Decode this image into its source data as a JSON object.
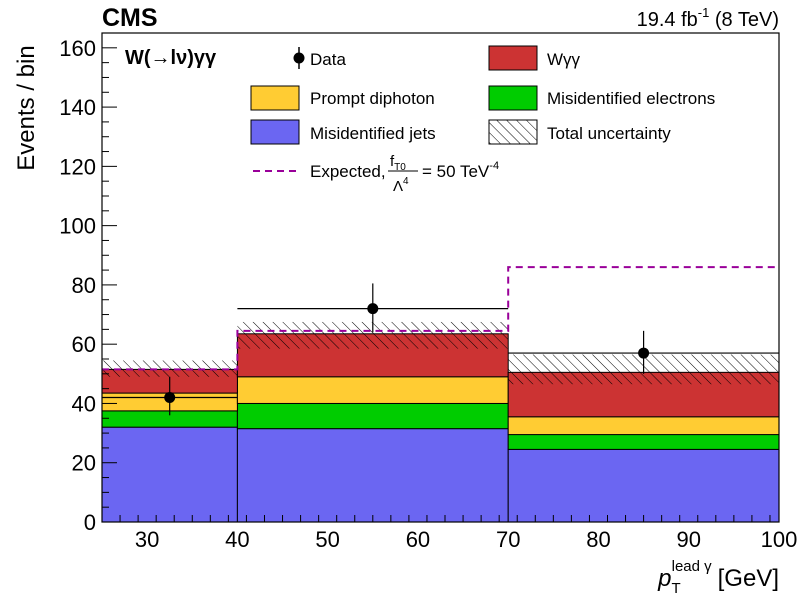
{
  "header": {
    "experiment": "CMS",
    "lumi_value": "19.4 fb",
    "lumi_exponent": "-1",
    "energy": "(8 TeV)"
  },
  "axes": {
    "ylabel": "Events / bin",
    "xlabel_symbol": "p",
    "xlabel_subscript": "T",
    "xlabel_superscript": "lead γ",
    "xlabel_unit": "[GeV]"
  },
  "legend": {
    "process": "W(→lν)γγ",
    "data": "Data",
    "wgg": "Wγγ",
    "prompt": "Prompt diphoton",
    "elec": "Misidentified electrons",
    "jets": "Misidentified jets",
    "unc": "Total uncertainty",
    "expected_prefix": "Expected,",
    "frac_num": "f",
    "frac_num_sub": "T0",
    "frac_den": "Λ",
    "frac_den_sup": "4",
    "expected_value": "= 50 TeV",
    "expected_exp": "-4"
  },
  "chart_data": {
    "type": "bar",
    "stacked": true,
    "title": "",
    "xlabel": "p_T^{lead γ} [GeV]",
    "ylabel": "Events / bin",
    "xlim": [
      25,
      100
    ],
    "ylim": [
      0,
      165
    ],
    "x_ticks": [
      30,
      40,
      50,
      60,
      70,
      80,
      90,
      100
    ],
    "y_ticks": [
      0,
      20,
      40,
      60,
      80,
      100,
      120,
      140,
      160
    ],
    "bin_edges": [
      25,
      40,
      70,
      100
    ],
    "series": [
      {
        "name": "Misidentified jets",
        "color": "#6b66f2",
        "values": [
          32,
          31.5,
          24.5
        ]
      },
      {
        "name": "Misidentified electrons",
        "color": "#00cc00",
        "values": [
          5.5,
          8.5,
          5
        ]
      },
      {
        "name": "Prompt diphoton",
        "color": "#ffcc33",
        "values": [
          6,
          9,
          6
        ]
      },
      {
        "name": "Wγγ",
        "color": "#cc3333",
        "values": [
          8,
          14.5,
          15
        ]
      }
    ],
    "uncertainty": {
      "name": "Total uncertainty",
      "low": [
        49,
        58.5,
        46.5
      ],
      "high": [
        54.5,
        67.5,
        56.5
      ]
    },
    "expected": {
      "name": "Expected, f_T0/Λ^4 = 50 TeV^-4",
      "color": "#990099",
      "values": [
        51.5,
        64.5,
        86
      ]
    },
    "data": {
      "name": "Data",
      "points": [
        {
          "x": 32.5,
          "y": 42,
          "xerr": 7.5,
          "yerr_low": 6,
          "yerr_high": 7
        },
        {
          "x": 55,
          "y": 72,
          "xerr": 15,
          "yerr_low": 8,
          "yerr_high": 8.5
        },
        {
          "x": 85,
          "y": 57,
          "xerr": 15,
          "yerr_low": 7,
          "yerr_high": 7.5
        }
      ]
    },
    "legend_position": "top"
  }
}
